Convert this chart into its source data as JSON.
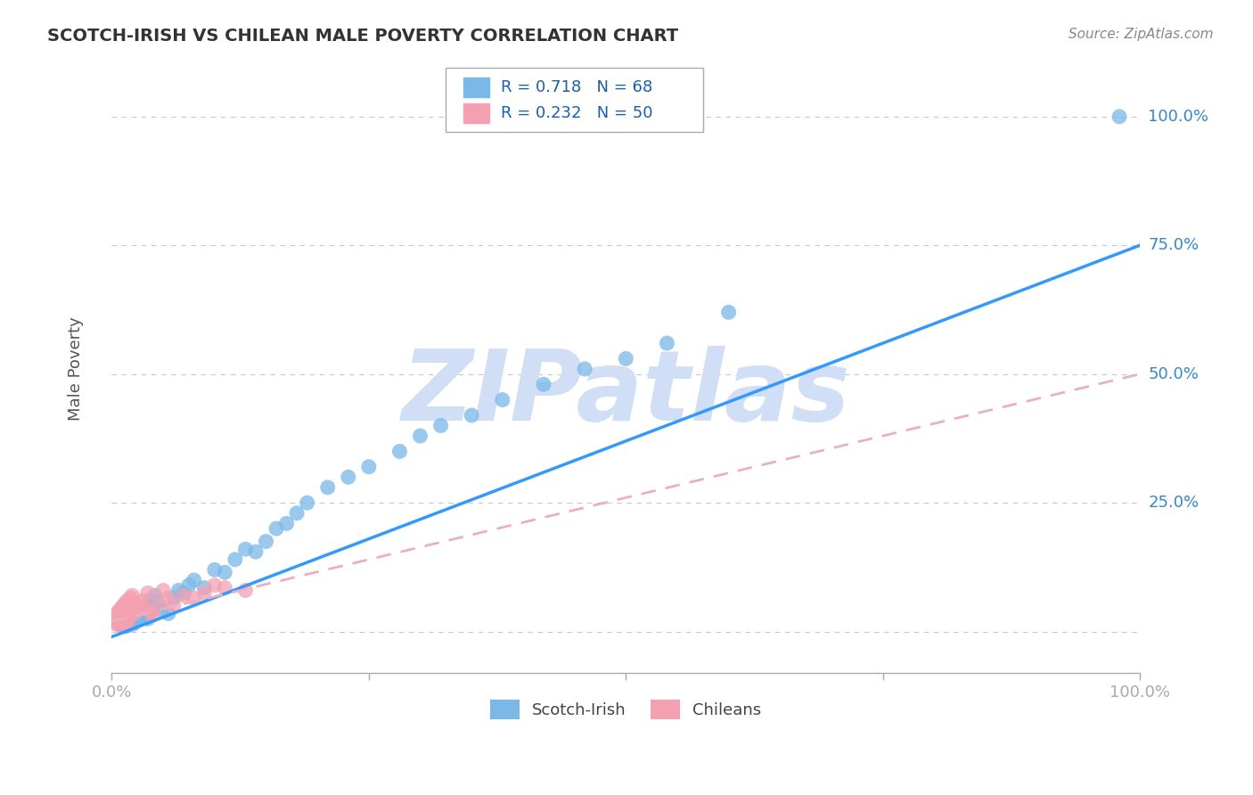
{
  "title": "SCOTCH-IRISH VS CHILEAN MALE POVERTY CORRELATION CHART",
  "source_text": "Source: ZipAtlas.com",
  "ylabel": "Male Poverty",
  "xlim": [
    0,
    1.0
  ],
  "ylim": [
    -0.08,
    1.1
  ],
  "group1_name": "Scotch-Irish",
  "group2_name": "Chileans",
  "group1_color": "#7ab8e8",
  "group2_color": "#f4a0b0",
  "group1_R": 0.718,
  "group1_N": 68,
  "group2_R": 0.232,
  "group2_N": 50,
  "legend_R_color": "#1a5fa8",
  "background_color": "#ffffff",
  "grid_color": "#c8c8c8",
  "watermark": "ZIPatlas",
  "watermark_color": "#d0dff5",
  "trendline1_color": "#3399ff",
  "trendline2_color": "#e8b0c0",
  "ytick_positions": [
    0.25,
    0.5,
    0.75,
    1.0
  ],
  "ytick_labels": [
    "25.0%",
    "50.0%",
    "75.0%",
    "100.0%"
  ],
  "scotch_irish_x": [
    0.005,
    0.007,
    0.008,
    0.009,
    0.01,
    0.01,
    0.011,
    0.012,
    0.013,
    0.013,
    0.014,
    0.014,
    0.015,
    0.015,
    0.016,
    0.017,
    0.018,
    0.018,
    0.019,
    0.02,
    0.02,
    0.021,
    0.022,
    0.022,
    0.025,
    0.026,
    0.027,
    0.028,
    0.03,
    0.032,
    0.033,
    0.035,
    0.037,
    0.04,
    0.042,
    0.045,
    0.05,
    0.055,
    0.06,
    0.065,
    0.07,
    0.075,
    0.08,
    0.09,
    0.1,
    0.11,
    0.12,
    0.13,
    0.14,
    0.15,
    0.16,
    0.17,
    0.18,
    0.19,
    0.21,
    0.23,
    0.25,
    0.28,
    0.3,
    0.32,
    0.35,
    0.38,
    0.42,
    0.46,
    0.5,
    0.54,
    0.6,
    0.98
  ],
  "scotch_irish_y": [
    0.02,
    0.015,
    0.018,
    0.025,
    0.012,
    0.03,
    0.022,
    0.018,
    0.028,
    0.01,
    0.015,
    0.025,
    0.02,
    0.035,
    0.012,
    0.028,
    0.022,
    0.032,
    0.018,
    0.025,
    0.04,
    0.015,
    0.03,
    0.045,
    0.022,
    0.035,
    0.028,
    0.042,
    0.038,
    0.03,
    0.05,
    0.025,
    0.06,
    0.045,
    0.07,
    0.055,
    0.04,
    0.035,
    0.065,
    0.08,
    0.075,
    0.09,
    0.1,
    0.085,
    0.12,
    0.115,
    0.14,
    0.16,
    0.155,
    0.175,
    0.2,
    0.21,
    0.23,
    0.25,
    0.28,
    0.3,
    0.32,
    0.35,
    0.38,
    0.4,
    0.42,
    0.45,
    0.48,
    0.51,
    0.53,
    0.56,
    0.62,
    1.0
  ],
  "chilean_x": [
    0.003,
    0.004,
    0.005,
    0.005,
    0.006,
    0.006,
    0.007,
    0.007,
    0.008,
    0.008,
    0.009,
    0.009,
    0.01,
    0.01,
    0.011,
    0.011,
    0.012,
    0.012,
    0.013,
    0.013,
    0.014,
    0.014,
    0.015,
    0.015,
    0.016,
    0.017,
    0.018,
    0.018,
    0.019,
    0.02,
    0.02,
    0.022,
    0.023,
    0.025,
    0.028,
    0.03,
    0.032,
    0.035,
    0.038,
    0.04,
    0.045,
    0.05,
    0.055,
    0.06,
    0.07,
    0.08,
    0.09,
    0.1,
    0.11,
    0.13
  ],
  "chilean_y": [
    0.02,
    0.015,
    0.025,
    0.035,
    0.018,
    0.03,
    0.022,
    0.04,
    0.028,
    0.012,
    0.032,
    0.045,
    0.025,
    0.038,
    0.02,
    0.05,
    0.015,
    0.042,
    0.03,
    0.055,
    0.018,
    0.035,
    0.025,
    0.06,
    0.022,
    0.045,
    0.03,
    0.065,
    0.038,
    0.04,
    0.07,
    0.035,
    0.055,
    0.042,
    0.05,
    0.06,
    0.045,
    0.075,
    0.038,
    0.032,
    0.055,
    0.08,
    0.065,
    0.05,
    0.07,
    0.065,
    0.075,
    0.09,
    0.085,
    0.08
  ],
  "trendline1_x0": 0.0,
  "trendline1_y0": -0.01,
  "trendline1_x1": 1.0,
  "trendline1_y1": 0.75,
  "trendline2_x0": 0.0,
  "trendline2_y0": 0.02,
  "trendline2_x1": 1.0,
  "trendline2_y1": 0.5
}
